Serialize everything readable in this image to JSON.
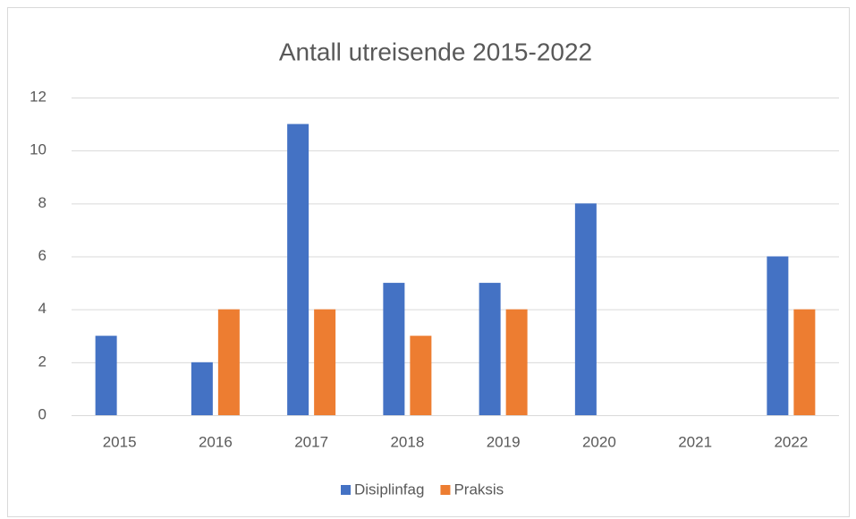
{
  "chart_data": {
    "type": "bar",
    "title": "Antall utreisende 2015-2022",
    "categories": [
      "2015",
      "2016",
      "2017",
      "2018",
      "2019",
      "2020",
      "2021",
      "2022"
    ],
    "series": [
      {
        "name": "Disiplinfag",
        "color": "#4472c4",
        "values": [
          3,
          2,
          11,
          5,
          5,
          8,
          0,
          6
        ]
      },
      {
        "name": "Praksis",
        "color": "#ed7d31",
        "values": [
          0,
          4,
          4,
          3,
          4,
          0,
          0,
          4
        ]
      }
    ],
    "ylim": [
      0,
      12
    ],
    "yticks": [
      0,
      2,
      4,
      6,
      8,
      10,
      12
    ],
    "grid": true,
    "legend": "bottom"
  }
}
